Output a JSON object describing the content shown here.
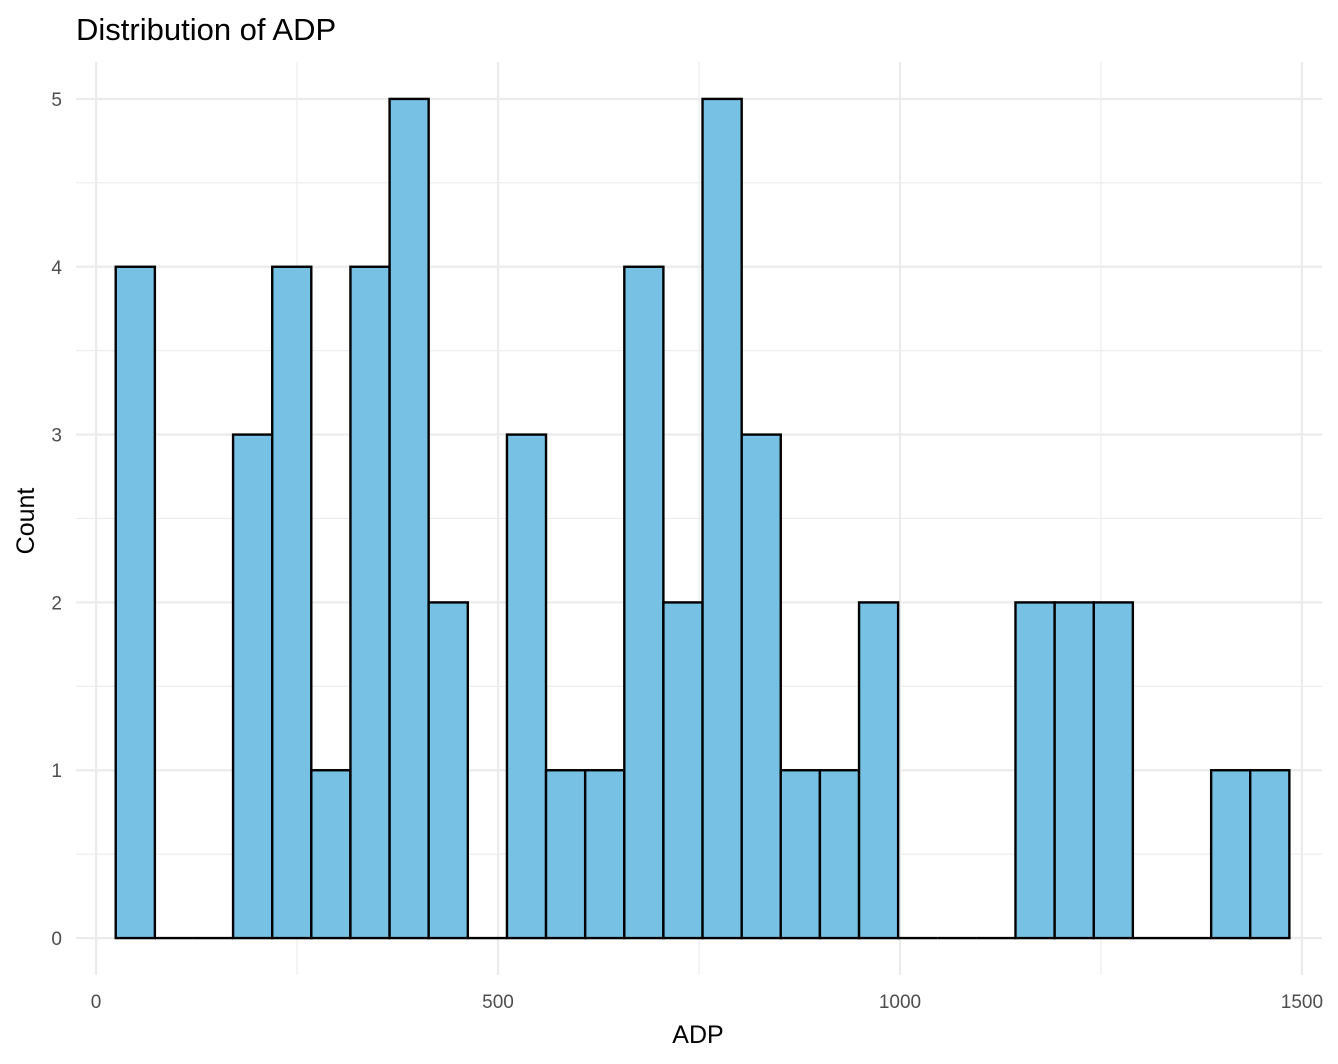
{
  "chart_data": {
    "type": "bar",
    "subtype": "histogram",
    "title": "Distribution of ADP",
    "xlabel": "ADP",
    "ylabel": "Count",
    "xlim": [
      -25,
      1525
    ],
    "ylim": [
      -0.22,
      5.22
    ],
    "x_ticks": [
      0,
      500,
      1000,
      1500
    ],
    "x_tick_labels": [
      "0",
      "500",
      "1000",
      "1500"
    ],
    "y_ticks": [
      0,
      1,
      2,
      3,
      4,
      5
    ],
    "y_tick_labels": [
      "0",
      "1",
      "2",
      "3",
      "4",
      "5"
    ],
    "bin_width": 48.67,
    "bins": [
      {
        "x0": 24.4,
        "x1": 73.1,
        "count": 4
      },
      {
        "x0": 73.1,
        "x1": 121.7,
        "count": 0
      },
      {
        "x0": 121.7,
        "x1": 170.4,
        "count": 0
      },
      {
        "x0": 170.4,
        "x1": 219.1,
        "count": 3
      },
      {
        "x0": 219.1,
        "x1": 267.7,
        "count": 4
      },
      {
        "x0": 267.7,
        "x1": 316.4,
        "count": 1
      },
      {
        "x0": 316.4,
        "x1": 365.1,
        "count": 4
      },
      {
        "x0": 365.1,
        "x1": 413.7,
        "count": 5
      },
      {
        "x0": 413.7,
        "x1": 462.4,
        "count": 2
      },
      {
        "x0": 462.4,
        "x1": 511.1,
        "count": 0
      },
      {
        "x0": 511.1,
        "x1": 559.7,
        "count": 3
      },
      {
        "x0": 559.7,
        "x1": 608.4,
        "count": 1
      },
      {
        "x0": 608.4,
        "x1": 657.1,
        "count": 1
      },
      {
        "x0": 657.1,
        "x1": 705.7,
        "count": 4
      },
      {
        "x0": 705.7,
        "x1": 754.4,
        "count": 2
      },
      {
        "x0": 754.4,
        "x1": 803.1,
        "count": 5
      },
      {
        "x0": 803.1,
        "x1": 851.7,
        "count": 3
      },
      {
        "x0": 851.7,
        "x1": 900.4,
        "count": 1
      },
      {
        "x0": 900.4,
        "x1": 949.1,
        "count": 1
      },
      {
        "x0": 949.1,
        "x1": 997.7,
        "count": 2
      },
      {
        "x0": 997.7,
        "x1": 1046.4,
        "count": 0
      },
      {
        "x0": 1046.4,
        "x1": 1095.1,
        "count": 0
      },
      {
        "x0": 1095.1,
        "x1": 1143.7,
        "count": 0
      },
      {
        "x0": 1143.7,
        "x1": 1192.4,
        "count": 2
      },
      {
        "x0": 1192.4,
        "x1": 1241.1,
        "count": 2
      },
      {
        "x0": 1241.1,
        "x1": 1289.7,
        "count": 2
      },
      {
        "x0": 1289.7,
        "x1": 1338.4,
        "count": 0
      },
      {
        "x0": 1338.4,
        "x1": 1387.1,
        "count": 0
      },
      {
        "x0": 1387.1,
        "x1": 1435.7,
        "count": 1
      },
      {
        "x0": 1435.7,
        "x1": 1484.4,
        "count": 1
      }
    ],
    "bar_fill": "#77c2e4",
    "bar_outline": "#000000",
    "grid": true,
    "legend": "none"
  }
}
